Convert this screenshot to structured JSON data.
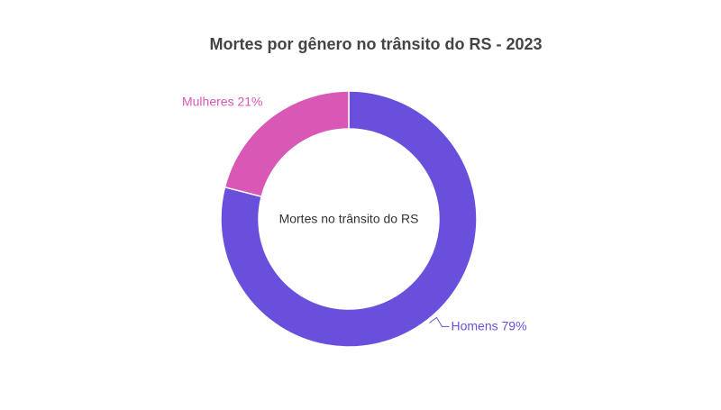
{
  "chart_data": {
    "type": "donut",
    "title": "Mortes por gênero no trânsito do RS - 2023",
    "center_label": "Mortes no trânsito do RS",
    "categories": [
      "Homens",
      "Mulheres"
    ],
    "values": [
      79,
      21
    ],
    "value_labels": [
      "79%",
      "21%"
    ],
    "colors": [
      "#6a4fdc",
      "#d957b5"
    ]
  }
}
